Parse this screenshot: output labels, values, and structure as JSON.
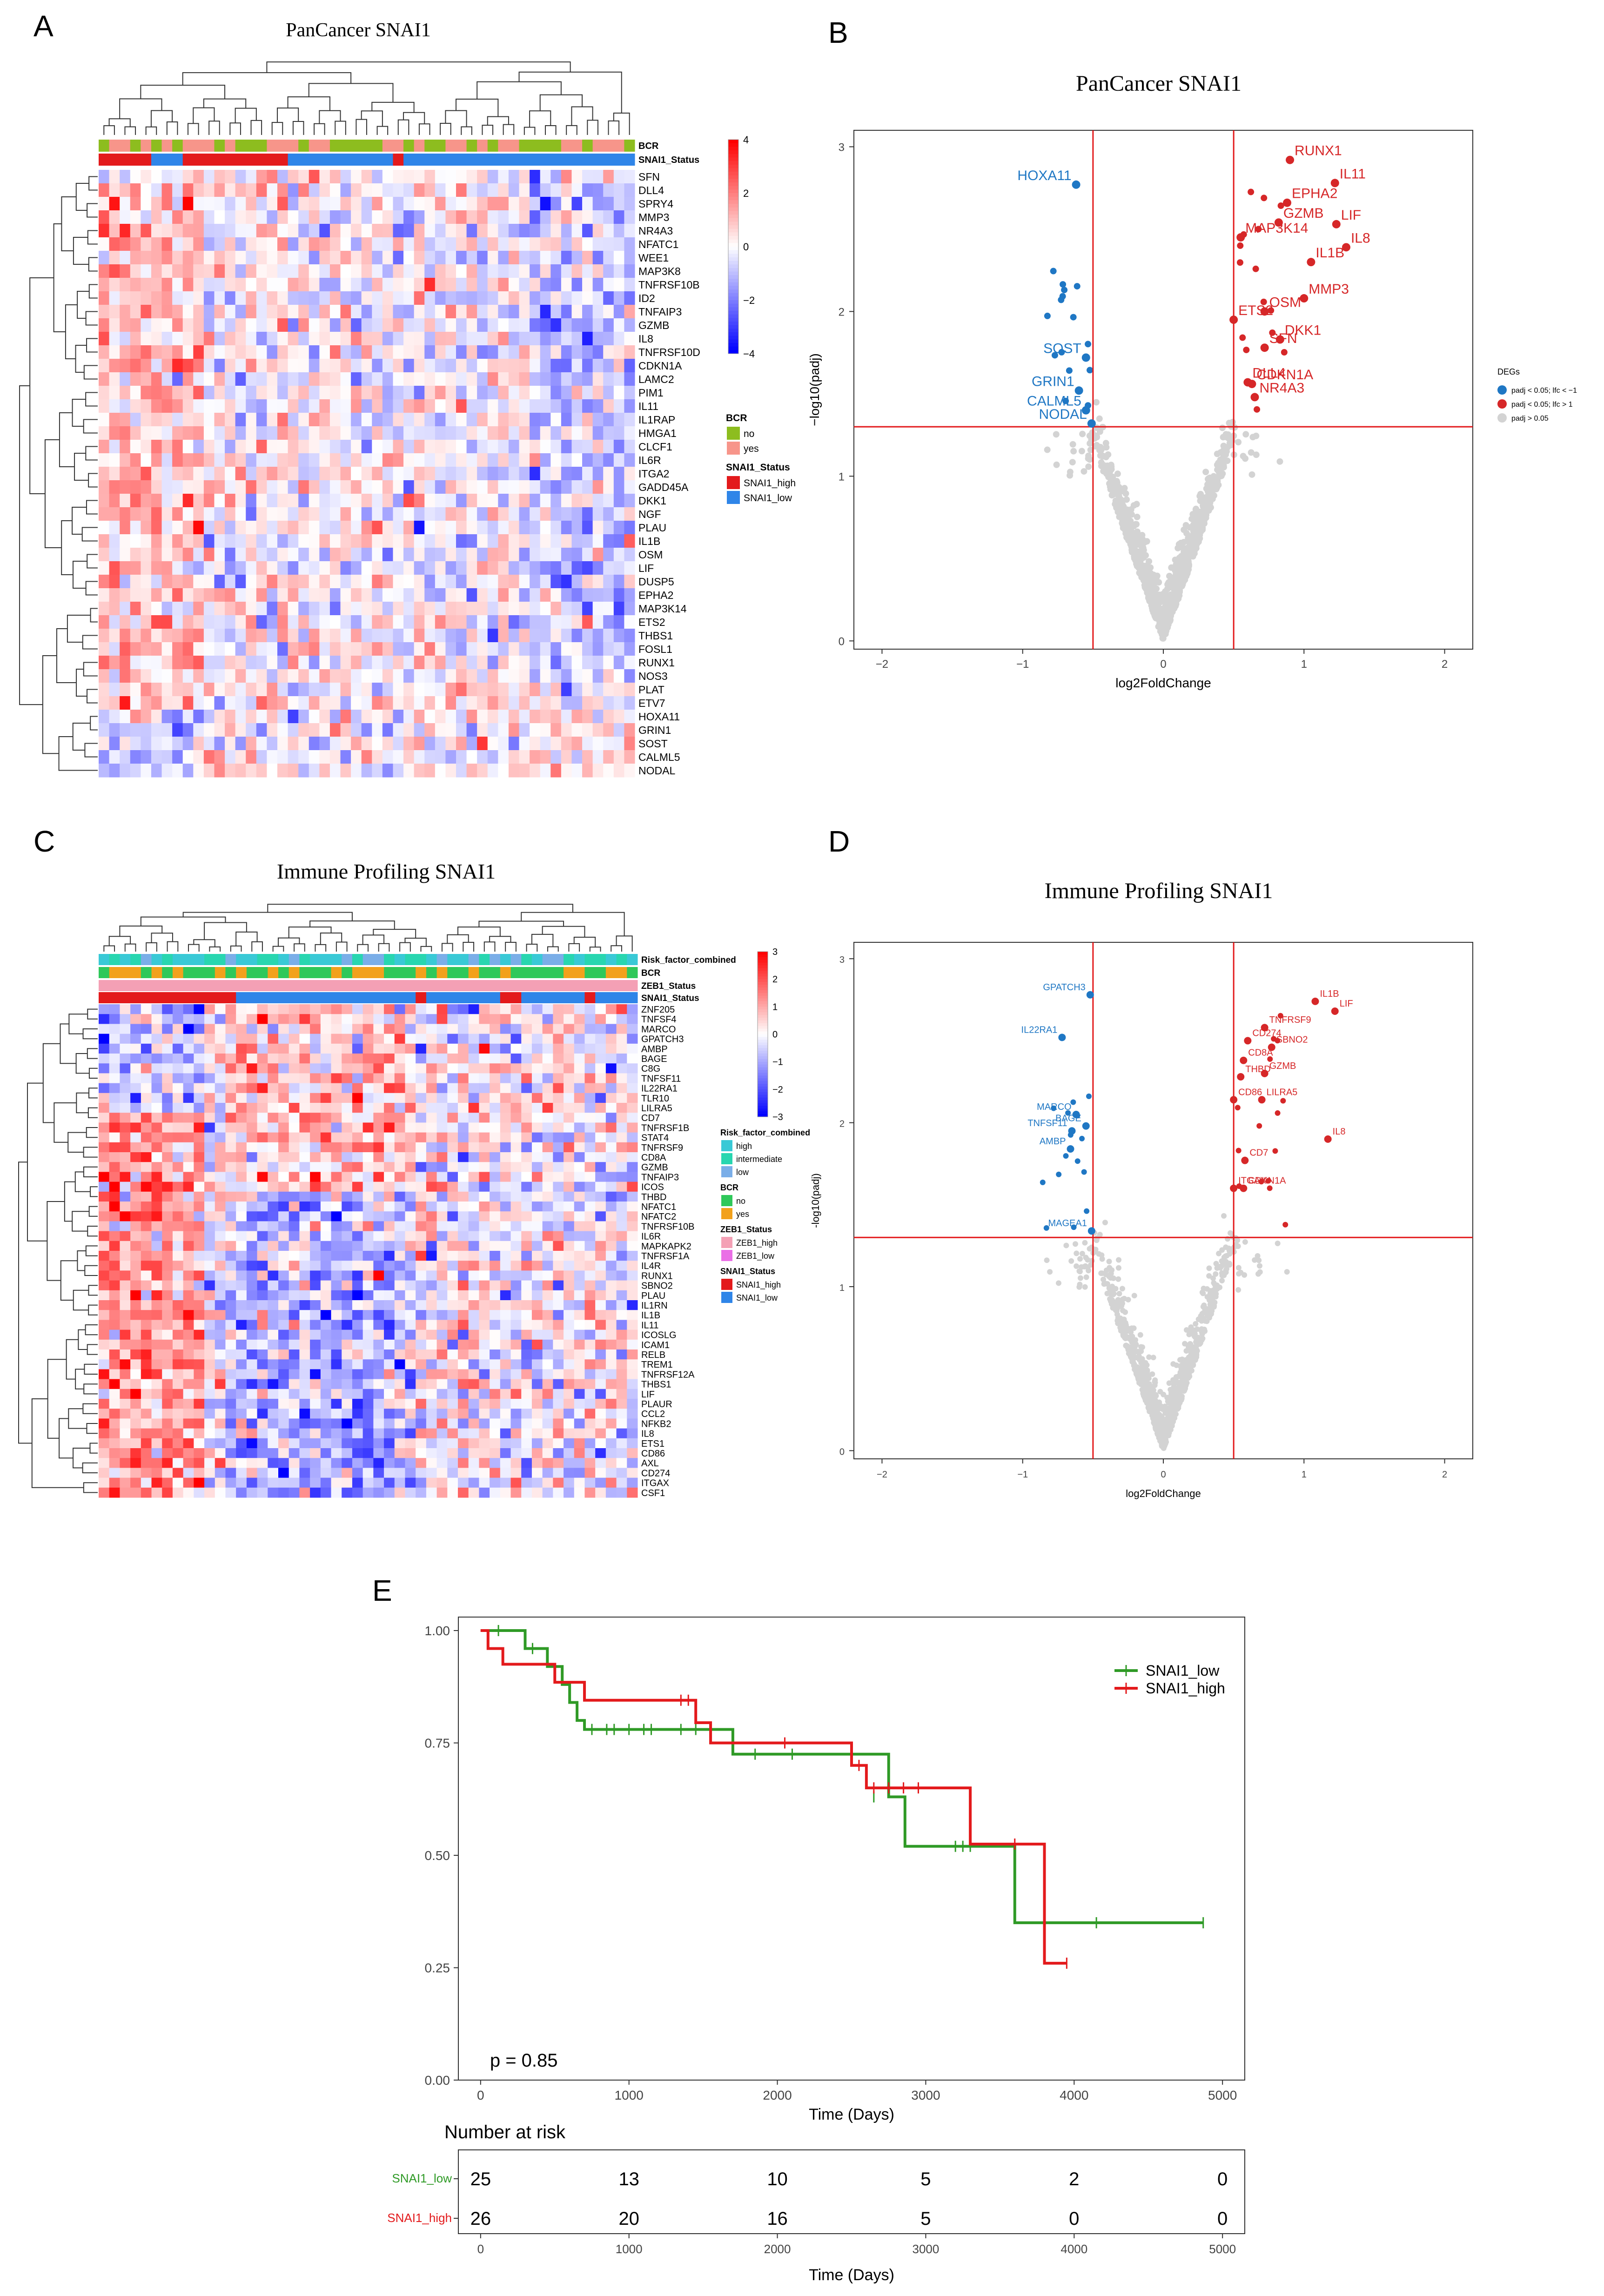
{
  "panel_letters": [
    "A",
    "B",
    "C",
    "D",
    "E"
  ],
  "chart_data": [
    {
      "id": "A",
      "type": "heatmap",
      "title": "PanCancer SNAI1",
      "rows": [
        "SFN",
        "DLL4",
        "SPRY4",
        "MMP3",
        "NR4A3",
        "NFATC1",
        "WEE1",
        "MAP3K8",
        "TNFRSF10B",
        "ID2",
        "TNFAIP3",
        "GZMB",
        "IL8",
        "TNFRSF10D",
        "CDKN1A",
        "LAMC2",
        "PIM1",
        "IL11",
        "IL1RAP",
        "HMGA1",
        "CLCF1",
        "IL6R",
        "ITGA2",
        "GADD45A",
        "DKK1",
        "NGF",
        "PLAU",
        "IL1B",
        "OSM",
        "LIF",
        "DUSP5",
        "EPHA2",
        "MAP3K14",
        "ETS2",
        "THBS1",
        "FOSL1",
        "RUNX1",
        "NOS3",
        "PLAT",
        "ETV7",
        "HOXA11",
        "GRIN1",
        "SOST",
        "CALML5",
        "NODAL"
      ],
      "n_columns": 51,
      "annotation_tracks": [
        "BCR",
        "SNAI1_Status"
      ],
      "color_scale": {
        "ticks": [
          4,
          2,
          0,
          -2,
          -4
        ],
        "colors": [
          "#ff0000",
          "#ffffff",
          "#0000ff"
        ]
      },
      "legend": [
        {
          "title": "BCR",
          "items": [
            {
              "label": "no",
              "color": "#8dbd1f"
            },
            {
              "label": "yes",
              "color": "#f7958a"
            }
          ]
        },
        {
          "title": "SNAI1_Status",
          "items": [
            {
              "label": "SNAI1_high",
              "color": "#e31a1c"
            },
            {
              "label": "SNAI1_low",
              "color": "#2f85e8"
            }
          ]
        }
      ],
      "top_annotation_pattern": {
        "BCR": "gyygygygyyygygggyyygyygggggyygyggyygygyyggggyygyyyg",
        "SNAI1_Status": "rrrrrbbbrrrrrrrrrrbbbbbbbbbbrbbbbbbbbbbbbbbbbbbbbbb"
      }
    },
    {
      "id": "B",
      "type": "scatter",
      "title": "PanCancer SNAI1",
      "xlabel": "log2FoldChange",
      "ylabel": "−log10(padj)",
      "xlim": [
        -2.2,
        2.2
      ],
      "ylim": [
        -0.05,
        3.1
      ],
      "xticks": [
        -2,
        -1,
        0,
        1,
        2
      ],
      "yticks": [
        0,
        1,
        2,
        3
      ],
      "x_thresholds": [
        -0.5,
        0.5
      ],
      "y_threshold": 1.3,
      "legend_title": "DEGs",
      "legend": [
        {
          "label": "padj < 0.05; lfc < −1",
          "color": "#1f77c4"
        },
        {
          "label": "padj < 0.05; lfc > 1",
          "color": "#d62728"
        },
        {
          "label": "padj > 0.05",
          "color": "#d3d3d3"
        }
      ],
      "labeled_points": [
        {
          "label": "HOXA11",
          "x": -0.62,
          "y": 2.77,
          "group": "down"
        },
        {
          "label": "SOST",
          "x": -0.55,
          "y": 1.72,
          "group": "down"
        },
        {
          "label": "GRIN1",
          "x": -0.6,
          "y": 1.52,
          "group": "down"
        },
        {
          "label": "CALML5",
          "x": -0.55,
          "y": 1.4,
          "group": "down"
        },
        {
          "label": "NODAL",
          "x": -0.51,
          "y": 1.32,
          "group": "down"
        },
        {
          "label": "RUNX1",
          "x": 0.9,
          "y": 2.92,
          "group": "up"
        },
        {
          "label": "IL11",
          "x": 1.22,
          "y": 2.78,
          "group": "up"
        },
        {
          "label": "EPHA2",
          "x": 0.88,
          "y": 2.66,
          "group": "up"
        },
        {
          "label": "GZMB",
          "x": 0.82,
          "y": 2.54,
          "group": "up"
        },
        {
          "label": "LIF",
          "x": 1.23,
          "y": 2.53,
          "group": "up"
        },
        {
          "label": "MAP3K14",
          "x": 0.55,
          "y": 2.45,
          "group": "up"
        },
        {
          "label": "IL8",
          "x": 1.3,
          "y": 2.39,
          "group": "up"
        },
        {
          "label": "IL1B",
          "x": 1.05,
          "y": 2.3,
          "group": "up"
        },
        {
          "label": "MMP3",
          "x": 1.0,
          "y": 2.08,
          "group": "up"
        },
        {
          "label": "ETS2",
          "x": 0.5,
          "y": 1.95,
          "group": "up"
        },
        {
          "label": "OSM",
          "x": 0.72,
          "y": 2.0,
          "group": "up"
        },
        {
          "label": "DKK1",
          "x": 0.83,
          "y": 1.83,
          "group": "up"
        },
        {
          "label": "SFN",
          "x": 0.72,
          "y": 1.78,
          "group": "up"
        },
        {
          "label": "DLL4",
          "x": 0.6,
          "y": 1.57,
          "group": "up"
        },
        {
          "label": "CDKN1A",
          "x": 0.63,
          "y": 1.56,
          "group": "up"
        },
        {
          "label": "NR4A3",
          "x": 0.65,
          "y": 1.48,
          "group": "up"
        }
      ]
    },
    {
      "id": "C",
      "type": "heatmap",
      "title": "Immune Profiling SNAI1",
      "rows": [
        "ZNF205",
        "TNFSF4",
        "MARCO",
        "GPATCH3",
        "AMBP",
        "BAGE",
        "C8G",
        "TNFSF11",
        "IL22RA1",
        "TLR10",
        "LILRA5",
        "CD7",
        "TNFRSF1B",
        "STAT4",
        "TNFRSF9",
        "CD8A",
        "GZMB",
        "TNFAIP3",
        "ICOS",
        "THBD",
        "NFATC1",
        "NFATC2",
        "TNFRSF10B",
        "IL6R",
        "MAPKAPK2",
        "TNFRSF1A",
        "IL4R",
        "RUNX1",
        "SBNO2",
        "PLAU",
        "IL1RN",
        "IL1B",
        "IL11",
        "ICOSLG",
        "ICAM1",
        "RELB",
        "TREM1",
        "TNFRSF12A",
        "THBS1",
        "LIF",
        "PLAUR",
        "CCL2",
        "NFKB2",
        "IL8",
        "ETS1",
        "CD86",
        "AXL",
        "CD274",
        "ITGAX",
        "CSF1"
      ],
      "n_columns": 51,
      "annotation_tracks": [
        "Risk_factor_combined",
        "BCR",
        "ZEB1_Status",
        "SNAI1_Status"
      ],
      "color_scale": {
        "ticks": [
          3,
          2,
          1,
          0,
          -1,
          -2,
          -3
        ],
        "colors": [
          "#ff0000",
          "#ffffff",
          "#0000ff"
        ]
      },
      "legend": [
        {
          "title": "Risk_factor_combined",
          "items": [
            {
              "label": "high",
              "color": "#39c9d6"
            },
            {
              "label": "intermediate",
              "color": "#28d6b0"
            },
            {
              "label": "low",
              "color": "#7aaee8"
            }
          ]
        },
        {
          "title": "BCR",
          "items": [
            {
              "label": "no",
              "color": "#2fc85a"
            },
            {
              "label": "yes",
              "color": "#f2a11c"
            }
          ]
        },
        {
          "title": "ZEB1_Status",
          "items": [
            {
              "label": "ZEB1_high",
              "color": "#f4a0b5"
            },
            {
              "label": "ZEB1_low",
              "color": "#ea6fe6"
            }
          ]
        },
        {
          "title": "SNAI1_Status",
          "items": [
            {
              "label": "SNAI1_high",
              "color": "#e31a1c"
            },
            {
              "label": "SNAI1_low",
              "color": "#2f85e8"
            }
          ]
        }
      ]
    },
    {
      "id": "D",
      "type": "scatter",
      "title": "Immune Profiling SNAI1",
      "xlabel": "log2FoldChange",
      "ylabel": "-log10(padj)",
      "xlim": [
        -2.2,
        2.2
      ],
      "ylim": [
        -0.05,
        3.1
      ],
      "xticks": [
        -2,
        -1,
        0,
        1,
        2
      ],
      "yticks": [
        0,
        1,
        2,
        3
      ],
      "x_thresholds": [
        -0.5,
        0.5
      ],
      "y_threshold": 1.3,
      "labeled_points": [
        {
          "label": "GPATCH3",
          "x": -0.52,
          "y": 2.78,
          "group": "down"
        },
        {
          "label": "IL22RA1",
          "x": -0.72,
          "y": 2.52,
          "group": "down"
        },
        {
          "label": "MARCO",
          "x": -0.62,
          "y": 2.05,
          "group": "down"
        },
        {
          "label": "TNFSF11",
          "x": -0.65,
          "y": 1.95,
          "group": "down"
        },
        {
          "label": "BAGE",
          "x": -0.55,
          "y": 1.98,
          "group": "down"
        },
        {
          "label": "AMBP",
          "x": -0.66,
          "y": 1.84,
          "group": "down"
        },
        {
          "label": "MAGEA1",
          "x": -0.51,
          "y": 1.34,
          "group": "down"
        },
        {
          "label": "IL1B",
          "x": 1.08,
          "y": 2.74,
          "group": "up"
        },
        {
          "label": "LIF",
          "x": 1.22,
          "y": 2.68,
          "group": "up"
        },
        {
          "label": "TNFRSF9",
          "x": 0.72,
          "y": 2.58,
          "group": "up"
        },
        {
          "label": "CD274",
          "x": 0.6,
          "y": 2.5,
          "group": "up"
        },
        {
          "label": "SBNO2",
          "x": 0.77,
          "y": 2.46,
          "group": "up"
        },
        {
          "label": "CD8A",
          "x": 0.57,
          "y": 2.38,
          "group": "up"
        },
        {
          "label": "GZMB",
          "x": 0.72,
          "y": 2.3,
          "group": "up"
        },
        {
          "label": "THBD",
          "x": 0.55,
          "y": 2.28,
          "group": "up"
        },
        {
          "label": "LILRA5",
          "x": 0.7,
          "y": 2.14,
          "group": "up"
        },
        {
          "label": "CD86",
          "x": 0.5,
          "y": 2.14,
          "group": "up"
        },
        {
          "label": "IL8",
          "x": 1.17,
          "y": 1.9,
          "group": "up"
        },
        {
          "label": "CD7",
          "x": 0.58,
          "y": 1.77,
          "group": "up"
        },
        {
          "label": "ITGAX",
          "x": 0.5,
          "y": 1.6,
          "group": "up"
        },
        {
          "label": "CDKN1A",
          "x": 0.57,
          "y": 1.6,
          "group": "up"
        }
      ]
    },
    {
      "id": "E",
      "type": "line",
      "title": "",
      "xlabel": "Time (Days)",
      "ylabel": "",
      "xlim": [
        -150,
        5150
      ],
      "ylim": [
        0,
        1.03
      ],
      "xticks": [
        0,
        1000,
        2000,
        3000,
        4000,
        5000
      ],
      "yticks": [
        0.0,
        0.25,
        0.5,
        0.75,
        1.0
      ],
      "ytick_labels": [
        "0.00",
        "0.25",
        "0.50",
        "0.75",
        "1.00"
      ],
      "pvalue_text": "p = 0.85",
      "series": [
        {
          "name": "SNAI1_low",
          "color": "#2f9a26",
          "steps": [
            [
              0,
              1.0
            ],
            [
              200,
              1.0
            ],
            [
              300,
              0.96
            ],
            [
              450,
              0.92
            ],
            [
              550,
              0.88
            ],
            [
              600,
              0.84
            ],
            [
              650,
              0.8
            ],
            [
              700,
              0.78
            ],
            [
              1650,
              0.78
            ],
            [
              1700,
              0.725
            ],
            [
              2700,
              0.725
            ],
            [
              2750,
              0.63
            ],
            [
              2850,
              0.63
            ],
            [
              2860,
              0.52
            ],
            [
              3550,
              0.52
            ],
            [
              3600,
              0.35
            ],
            [
              4870,
              0.35
            ]
          ],
          "censors": [
            [
              120,
              1.0
            ],
            [
              350,
              0.96
            ],
            [
              750,
              0.78
            ],
            [
              850,
              0.78
            ],
            [
              900,
              0.78
            ],
            [
              1000,
              0.78
            ],
            [
              1100,
              0.78
            ],
            [
              1150,
              0.78
            ],
            [
              1350,
              0.78
            ],
            [
              1450,
              0.78
            ],
            [
              1850,
              0.725
            ],
            [
              2100,
              0.725
            ],
            [
              2650,
              0.63
            ],
            [
              3200,
              0.52
            ],
            [
              3250,
              0.52
            ],
            [
              3300,
              0.52
            ],
            [
              4150,
              0.35
            ],
            [
              4870,
              0.35
            ]
          ]
        },
        {
          "name": "SNAI1_high",
          "color": "#e31a1c",
          "steps": [
            [
              0,
              1.0
            ],
            [
              50,
              0.96
            ],
            [
              150,
              0.925
            ],
            [
              500,
              0.885
            ],
            [
              700,
              0.845
            ],
            [
              1450,
              0.795
            ],
            [
              1550,
              0.75
            ],
            [
              2500,
              0.7
            ],
            [
              2600,
              0.65
            ],
            [
              3300,
              0.525
            ],
            [
              3800,
              0.26
            ],
            [
              3950,
              0.26
            ]
          ],
          "censors": [
            [
              1350,
              0.845
            ],
            [
              1400,
              0.845
            ],
            [
              2050,
              0.75
            ],
            [
              2550,
              0.7
            ],
            [
              2650,
              0.65
            ],
            [
              2750,
              0.65
            ],
            [
              2850,
              0.65
            ],
            [
              2950,
              0.65
            ],
            [
              3600,
              0.525
            ],
            [
              3950,
              0.26
            ]
          ]
        }
      ]
    },
    {
      "id": "E-risk",
      "type": "table",
      "title": "Number at risk",
      "xlabel": "Time (Days)",
      "xticks": [
        0,
        1000,
        2000,
        3000,
        4000,
        5000
      ],
      "rows": [
        {
          "name": "SNAI1_low",
          "color": "#2f9a26",
          "values": [
            25,
            13,
            10,
            5,
            2,
            0
          ]
        },
        {
          "name": "SNAI1_high",
          "color": "#e31a1c",
          "values": [
            26,
            20,
            16,
            5,
            0,
            0
          ]
        }
      ]
    }
  ]
}
